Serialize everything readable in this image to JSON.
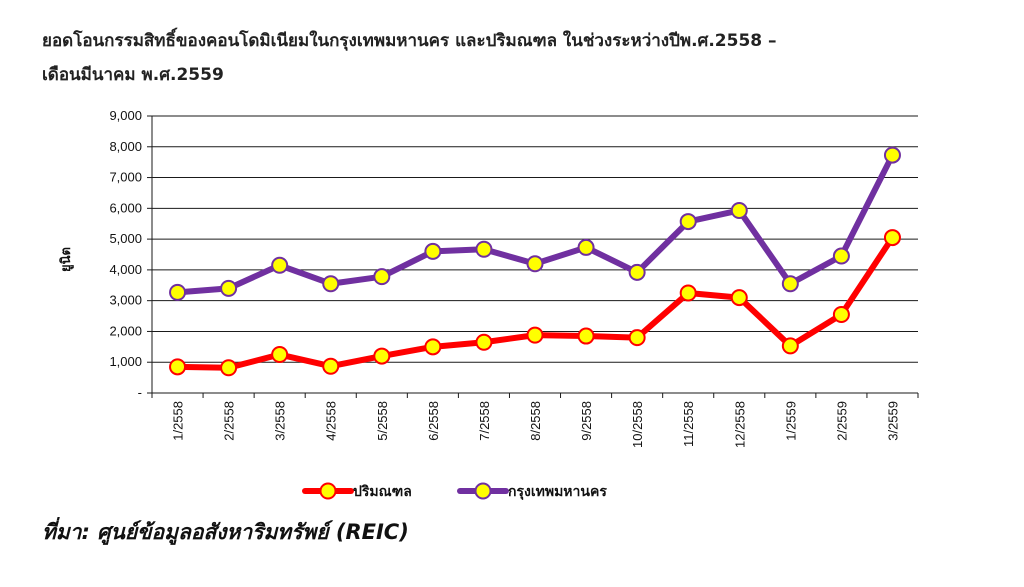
{
  "title": {
    "line1": "ยอดโอนกรรมสิทธิ์ของคอนโดมิเนียมในกรุงเทพมหานคร  และปริมณฑล  ในช่วงระหว่างปีพ.ศ.2558  –",
    "line2": "เดือนมีนาคม พ.ศ.2559"
  },
  "source": "ที่มา: ศูนย์ข้อมูลอสังหาริมทรัพย์ (REIC)",
  "chart_data": {
    "type": "line",
    "title": "ยอดโอนกรรมสิทธิ์ของคอนโดมิเนียมในกรุงเทพมหานคร และปริมณฑล ในช่วงระหว่างปีพ.ศ.2558 – เดือนมีนาคม พ.ศ.2559",
    "xlabel": "",
    "ylabel": "ยูนิต",
    "ylim": [
      0,
      9000
    ],
    "yticks": [
      0,
      1000,
      2000,
      3000,
      4000,
      5000,
      6000,
      7000,
      8000,
      9000
    ],
    "ytick_labels": [
      "-",
      "1,000",
      "2,000",
      "3,000",
      "4,000",
      "5,000",
      "6,000",
      "7,000",
      "8,000",
      "9,000"
    ],
    "grid": true,
    "legend_position": "bottom",
    "categories": [
      "1/2558",
      "2/2558",
      "3/2558",
      "4/2558",
      "5/2558",
      "6/2558",
      "7/2558",
      "8/2558",
      "9/2558",
      "10/2558",
      "11/2558",
      "12/2558",
      "1/2559",
      "2/2559",
      "3/2559"
    ],
    "series": [
      {
        "name": "ปริมณฑล",
        "color": "#ff0000",
        "marker_color": "#ffff00",
        "values": [
          850,
          820,
          1250,
          870,
          1200,
          1500,
          1650,
          1880,
          1850,
          1800,
          3250,
          3100,
          1530,
          2550,
          5050
        ]
      },
      {
        "name": "กรุงเทพมหานคร",
        "color": "#7030a0",
        "marker_color": "#ffff00",
        "values": [
          3270,
          3400,
          4150,
          3550,
          3780,
          4600,
          4670,
          4200,
          4730,
          3920,
          5570,
          5930,
          3550,
          4450,
          7730
        ]
      }
    ]
  }
}
